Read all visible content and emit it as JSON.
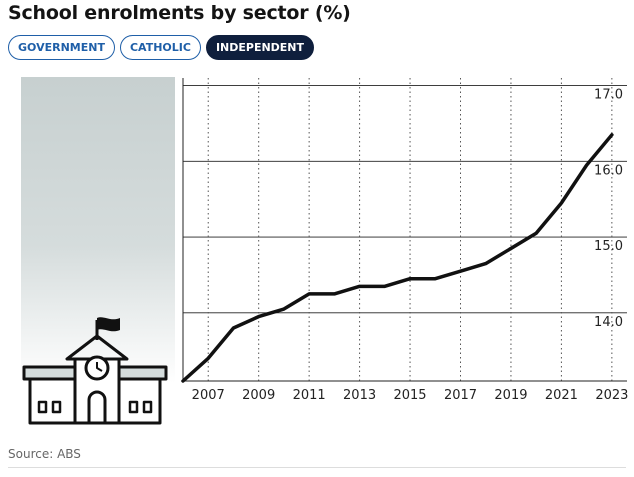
{
  "header": {
    "title": "School enrolments by sector (%)"
  },
  "tabs": [
    {
      "label": "GOVERNMENT",
      "active": false
    },
    {
      "label": "CATHOLIC",
      "active": false
    },
    {
      "label": "INDEPENDENT",
      "active": true
    }
  ],
  "footer": {
    "source": "Source: ABS"
  },
  "colors": {
    "accent": "#1f5fa8",
    "active_tab": "#0f1f3d",
    "line": "#111111",
    "panel": "#c7d0d0"
  },
  "icons": {
    "illustration": "school-building-icon"
  },
  "chart_data": {
    "type": "line",
    "title": "School enrolments by sector (%)",
    "xlabel": "",
    "ylabel": "",
    "x": [
      2006,
      2007,
      2008,
      2009,
      2010,
      2011,
      2012,
      2013,
      2014,
      2015,
      2016,
      2017,
      2018,
      2019,
      2020,
      2021,
      2022,
      2023
    ],
    "series": [
      {
        "name": "",
        "values": [
          13.1,
          13.4,
          13.8,
          13.95,
          14.05,
          14.25,
          14.25,
          14.35,
          14.35,
          14.45,
          14.45,
          14.55,
          14.65,
          14.85,
          15.05,
          15.45,
          15.95,
          16.35
        ]
      }
    ],
    "xticks": [
      "2007",
      "2009",
      "2011",
      "2013",
      "2015",
      "2017",
      "2019",
      "2021",
      "2023"
    ],
    "yticks": [
      "14.0",
      "15.0",
      "16.0",
      "17.0"
    ],
    "ylim": [
      13.1,
      17.1
    ],
    "xlim": [
      2006,
      2023.6
    ],
    "grid": {
      "x": "dotted",
      "y": "solid"
    },
    "legend": "none"
  }
}
